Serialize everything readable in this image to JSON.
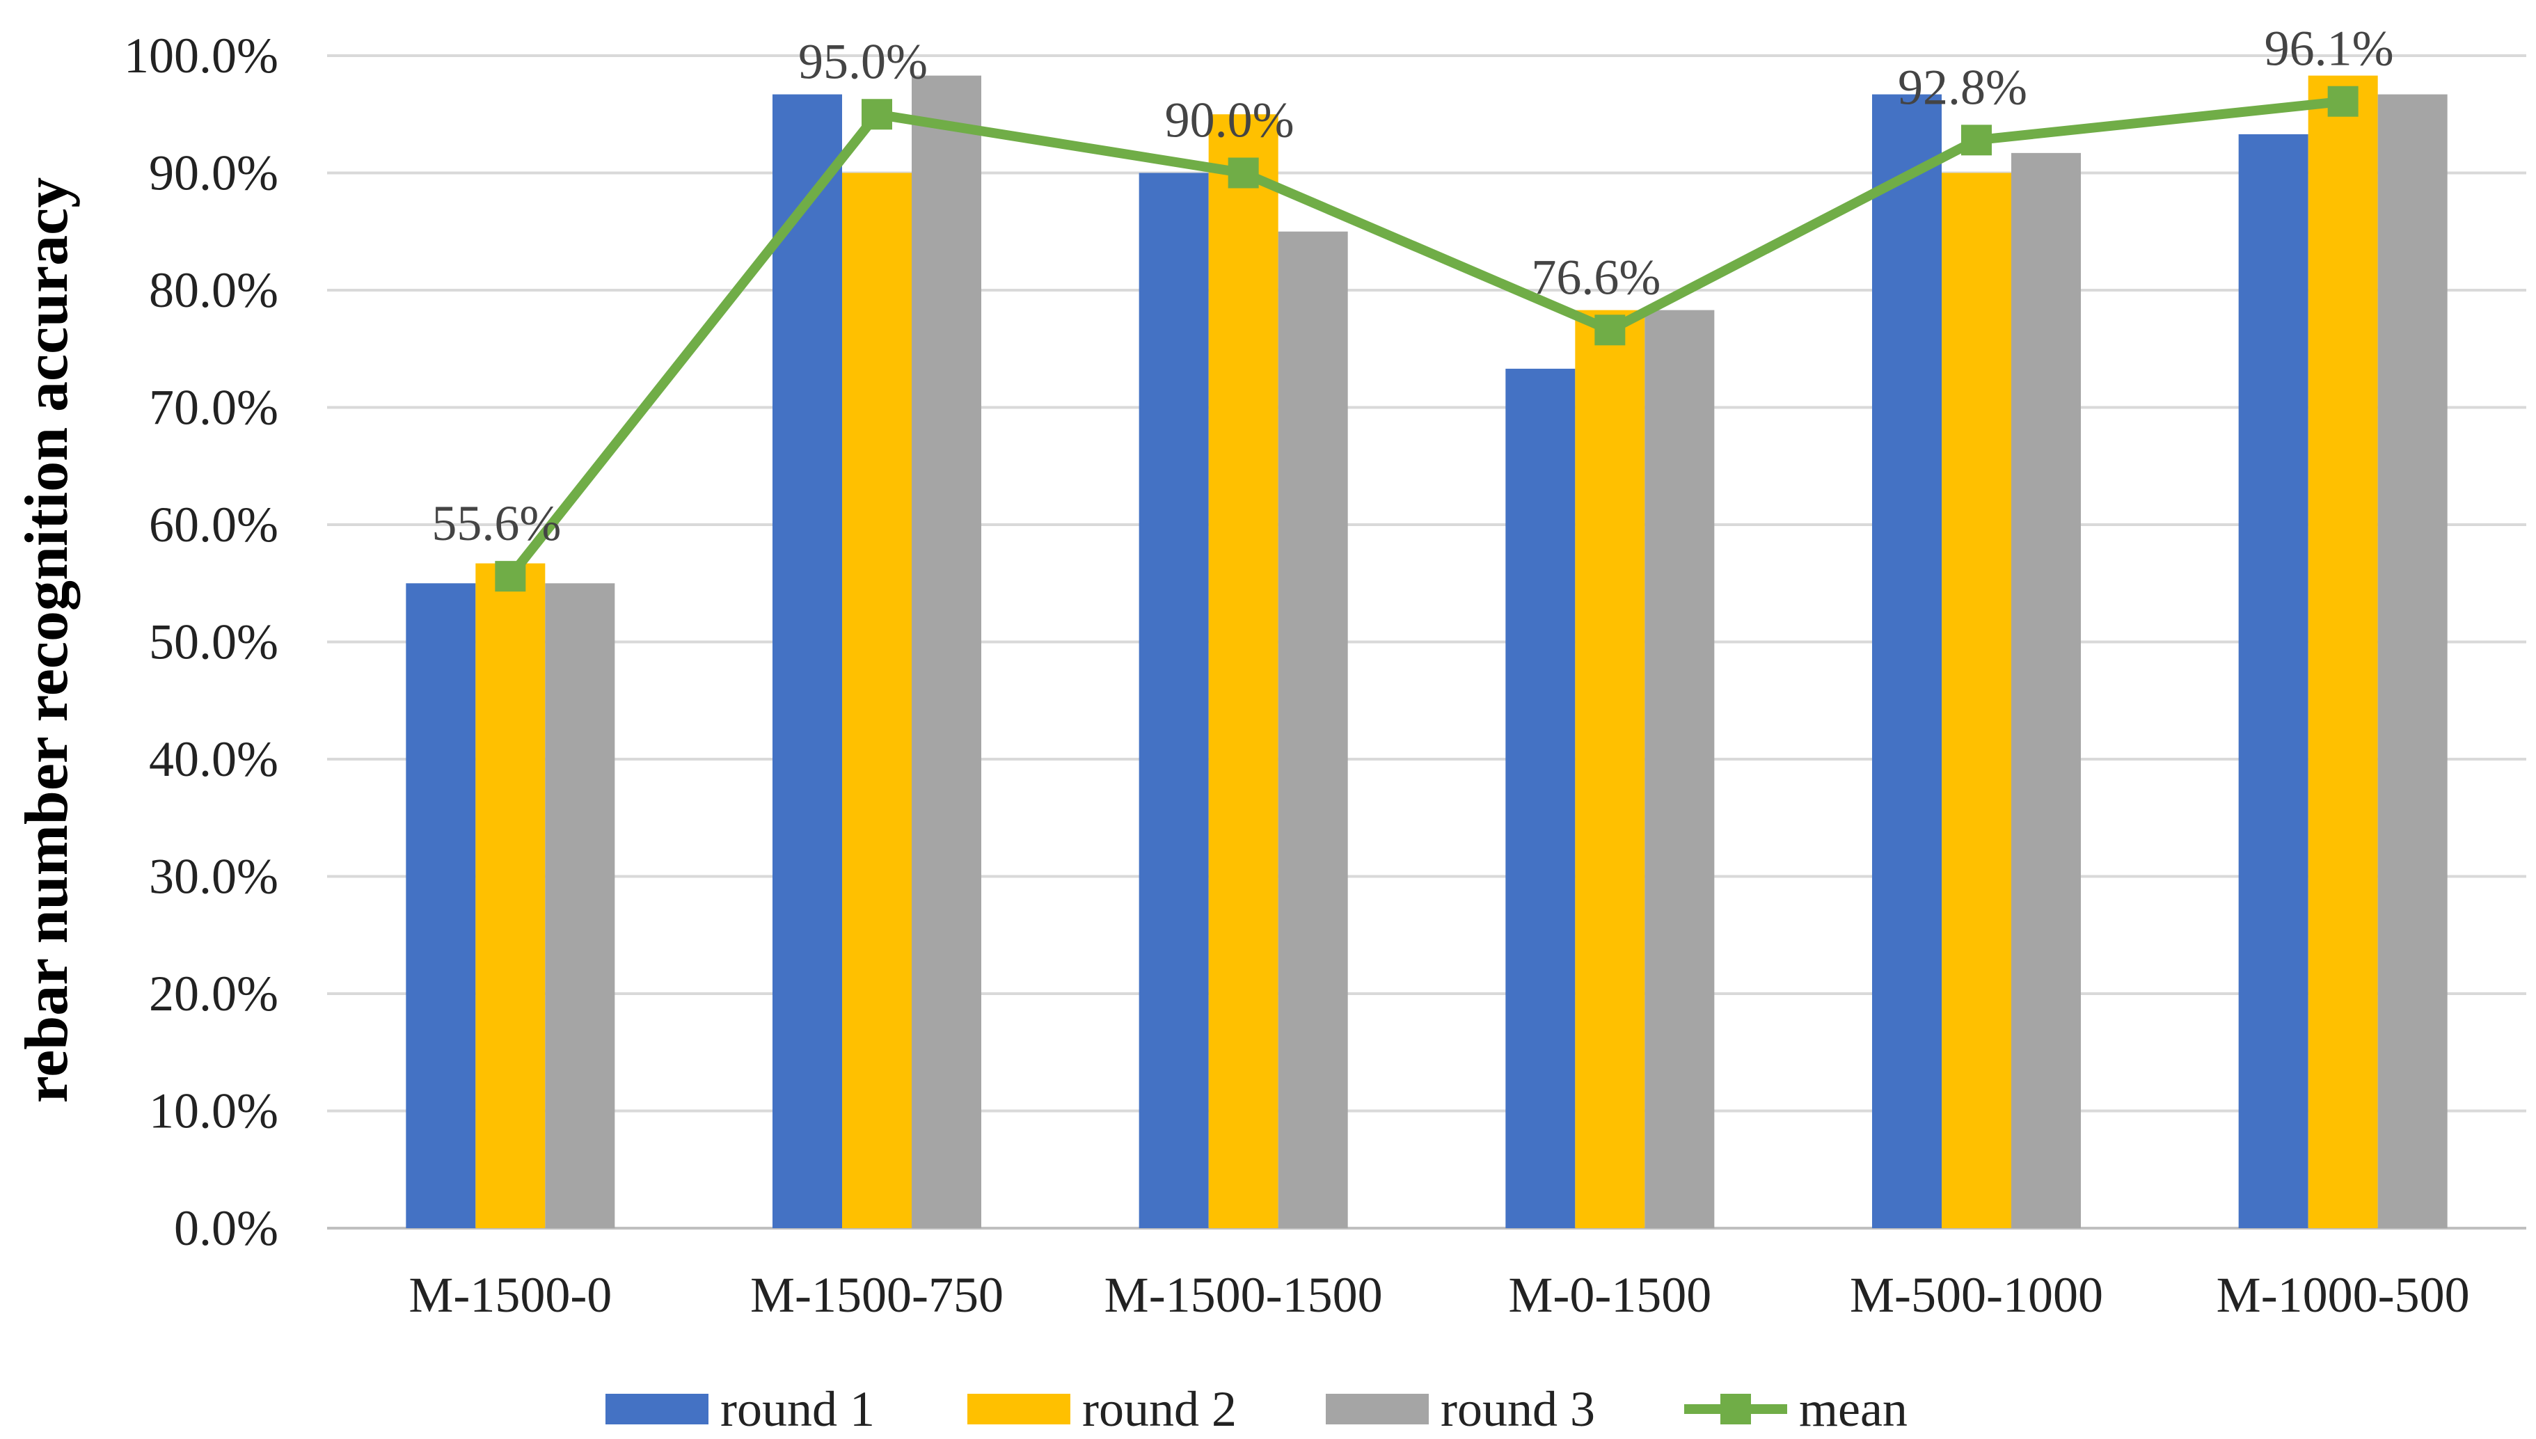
{
  "chart_data": {
    "type": "bar",
    "title": "",
    "xlabel": "",
    "ylabel": "rebar number recognition accuracy",
    "ylim": [
      0,
      100
    ],
    "y_ticks": [
      0,
      10,
      20,
      30,
      40,
      50,
      60,
      70,
      80,
      90,
      100
    ],
    "y_tick_labels": [
      "0.0%",
      "10.0%",
      "20.0%",
      "30.0%",
      "40.0%",
      "50.0%",
      "60.0%",
      "70.0%",
      "80.0%",
      "90.0%",
      "100.0%"
    ],
    "grid": true,
    "categories": [
      "M-1500-0",
      "M-1500-750",
      "M-1500-1500",
      "M-0-1500",
      "M-500-1000",
      "M-1000-500"
    ],
    "series": [
      {
        "name": "round 1",
        "kind": "bar",
        "color": "#4472C4",
        "values": [
          55.0,
          96.7,
          90.0,
          73.3,
          96.7,
          93.3
        ]
      },
      {
        "name": "round 2",
        "kind": "bar",
        "color": "#FFC000",
        "values": [
          56.7,
          90.0,
          95.0,
          78.3,
          90.0,
          98.3
        ]
      },
      {
        "name": "round 3",
        "kind": "bar",
        "color": "#A5A5A5",
        "values": [
          55.0,
          98.3,
          85.0,
          78.3,
          91.7,
          96.7
        ]
      },
      {
        "name": "mean",
        "kind": "line",
        "color": "#70AD47",
        "marker": "square",
        "values": [
          55.6,
          95.0,
          90.0,
          76.6,
          92.8,
          96.1
        ]
      }
    ],
    "data_labels": [
      "55.6%",
      "95.0%",
      "90.0%",
      "76.6%",
      "92.8%",
      "96.1%"
    ],
    "legend_position": "bottom"
  }
}
